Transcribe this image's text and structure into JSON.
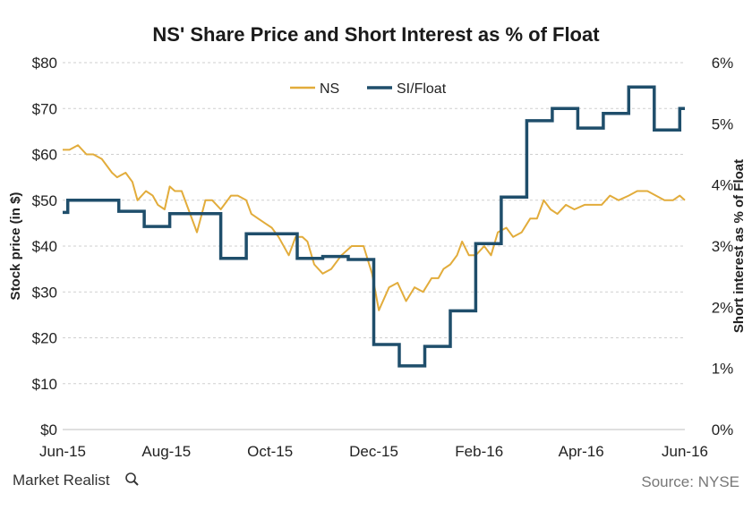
{
  "chart_data": {
    "type": "line",
    "title": "NS' Share Price and Short Interest as % of Float",
    "ylabel_left": "Stock price (in $)",
    "ylabel_right": "Short interest as % of Float",
    "ylim_left": [
      0,
      80
    ],
    "ylim_right": [
      0,
      6
    ],
    "yticks_left": [
      0,
      10,
      20,
      30,
      40,
      50,
      60,
      70,
      80
    ],
    "yticks_left_labels": [
      "$0",
      "$10",
      "$20",
      "$30",
      "$40",
      "$50",
      "$60",
      "$70",
      "$80"
    ],
    "yticks_right": [
      0,
      1,
      2,
      3,
      4,
      5,
      6
    ],
    "yticks_right_labels": [
      "0%",
      "1%",
      "2%",
      "3%",
      "4%",
      "5%",
      "6%"
    ],
    "xlim": [
      "2015-06-01",
      "2016-06-01"
    ],
    "xticks": [
      "2015-06-01",
      "2015-08-01",
      "2015-10-01",
      "2015-12-01",
      "2016-02-01",
      "2016-04-01",
      "2016-06-01"
    ],
    "xtick_labels": [
      "Jun-15",
      "Aug-15",
      "Oct-15",
      "Dec-15",
      "Feb-16",
      "Apr-16",
      "Jun-16"
    ],
    "grid": true,
    "legend_position": "top-center",
    "series": [
      {
        "name": "NS",
        "axis": "left",
        "color": "#E2AC3B",
        "x": [
          "2015-06-01",
          "2015-06-05",
          "2015-06-10",
          "2015-06-15",
          "2015-06-19",
          "2015-06-24",
          "2015-06-30",
          "2015-07-03",
          "2015-07-08",
          "2015-07-12",
          "2015-07-15",
          "2015-07-20",
          "2015-07-24",
          "2015-07-27",
          "2015-07-31",
          "2015-08-03",
          "2015-08-06",
          "2015-08-10",
          "2015-08-14",
          "2015-08-19",
          "2015-08-24",
          "2015-08-28",
          "2015-09-02",
          "2015-09-08",
          "2015-09-12",
          "2015-09-17",
          "2015-09-20",
          "2015-09-24",
          "2015-09-28",
          "2015-10-02",
          "2015-10-06",
          "2015-10-12",
          "2015-10-16",
          "2015-10-20",
          "2015-10-23",
          "2015-10-27",
          "2015-11-01",
          "2015-11-06",
          "2015-11-12",
          "2015-11-18",
          "2015-11-25",
          "2015-11-30",
          "2015-12-04",
          "2015-12-10",
          "2015-12-15",
          "2015-12-20",
          "2015-12-25",
          "2015-12-30",
          "2016-01-04",
          "2016-01-08",
          "2016-01-11",
          "2016-01-15",
          "2016-01-19",
          "2016-01-22",
          "2016-01-26",
          "2016-01-30",
          "2016-02-04",
          "2016-02-08",
          "2016-02-12",
          "2016-02-17",
          "2016-02-21",
          "2016-02-26",
          "2016-03-02",
          "2016-03-06",
          "2016-03-10",
          "2016-03-14",
          "2016-03-18",
          "2016-03-23",
          "2016-03-28",
          "2016-04-03",
          "2016-04-08",
          "2016-04-13",
          "2016-04-18",
          "2016-04-23",
          "2016-04-29",
          "2016-05-04",
          "2016-05-10",
          "2016-05-15",
          "2016-05-20",
          "2016-05-25",
          "2016-05-29",
          "2016-06-01"
        ],
        "values": [
          61,
          61,
          62,
          60,
          60,
          59,
          56,
          55,
          56,
          54,
          50,
          52,
          51,
          49,
          48,
          53,
          52,
          52,
          48,
          43,
          50,
          50,
          48,
          51,
          51,
          50,
          47,
          46,
          45,
          44,
          42,
          38,
          42,
          42,
          41,
          36,
          34,
          35,
          38,
          40,
          40,
          34,
          26,
          31,
          32,
          28,
          31,
          30,
          33,
          33,
          35,
          36,
          38,
          41,
          38,
          38,
          40,
          38,
          43,
          44,
          42,
          43,
          46,
          46,
          50,
          48,
          47,
          49,
          48,
          49,
          49,
          49,
          51,
          50,
          51,
          52,
          52,
          51,
          50,
          50,
          51,
          50
        ]
      },
      {
        "name": "SI/Float",
        "axis": "right",
        "color": "#1F4E6B",
        "step": true,
        "x": [
          "2015-06-01",
          "2015-06-04",
          "2015-06-19",
          "2015-07-04",
          "2015-07-19",
          "2015-08-03",
          "2015-08-18",
          "2015-09-02",
          "2015-09-17",
          "2015-10-02",
          "2015-10-17",
          "2015-11-01",
          "2015-11-16",
          "2015-12-01",
          "2015-12-16",
          "2015-12-31",
          "2016-01-15",
          "2016-01-30",
          "2016-02-14",
          "2016-02-29",
          "2016-03-15",
          "2016-03-30",
          "2016-04-14",
          "2016-04-29",
          "2016-05-14",
          "2016-05-29",
          "2016-06-01"
        ],
        "values": [
          3.55,
          3.75,
          3.75,
          3.57,
          3.32,
          3.53,
          3.53,
          2.8,
          3.2,
          3.2,
          2.8,
          2.83,
          2.78,
          1.39,
          1.04,
          1.36,
          1.94,
          3.04,
          3.8,
          5.05,
          5.25,
          4.93,
          5.17,
          5.6,
          4.9,
          5.25,
          5.25
        ]
      }
    ]
  },
  "footer": {
    "brand": "Market Realist",
    "source": "Source: NYSE"
  },
  "colors": {
    "grid": "#cfcfcf",
    "text": "#222222",
    "source": "#777777"
  },
  "icons": {
    "brand_icon": "magnifier-icon"
  }
}
